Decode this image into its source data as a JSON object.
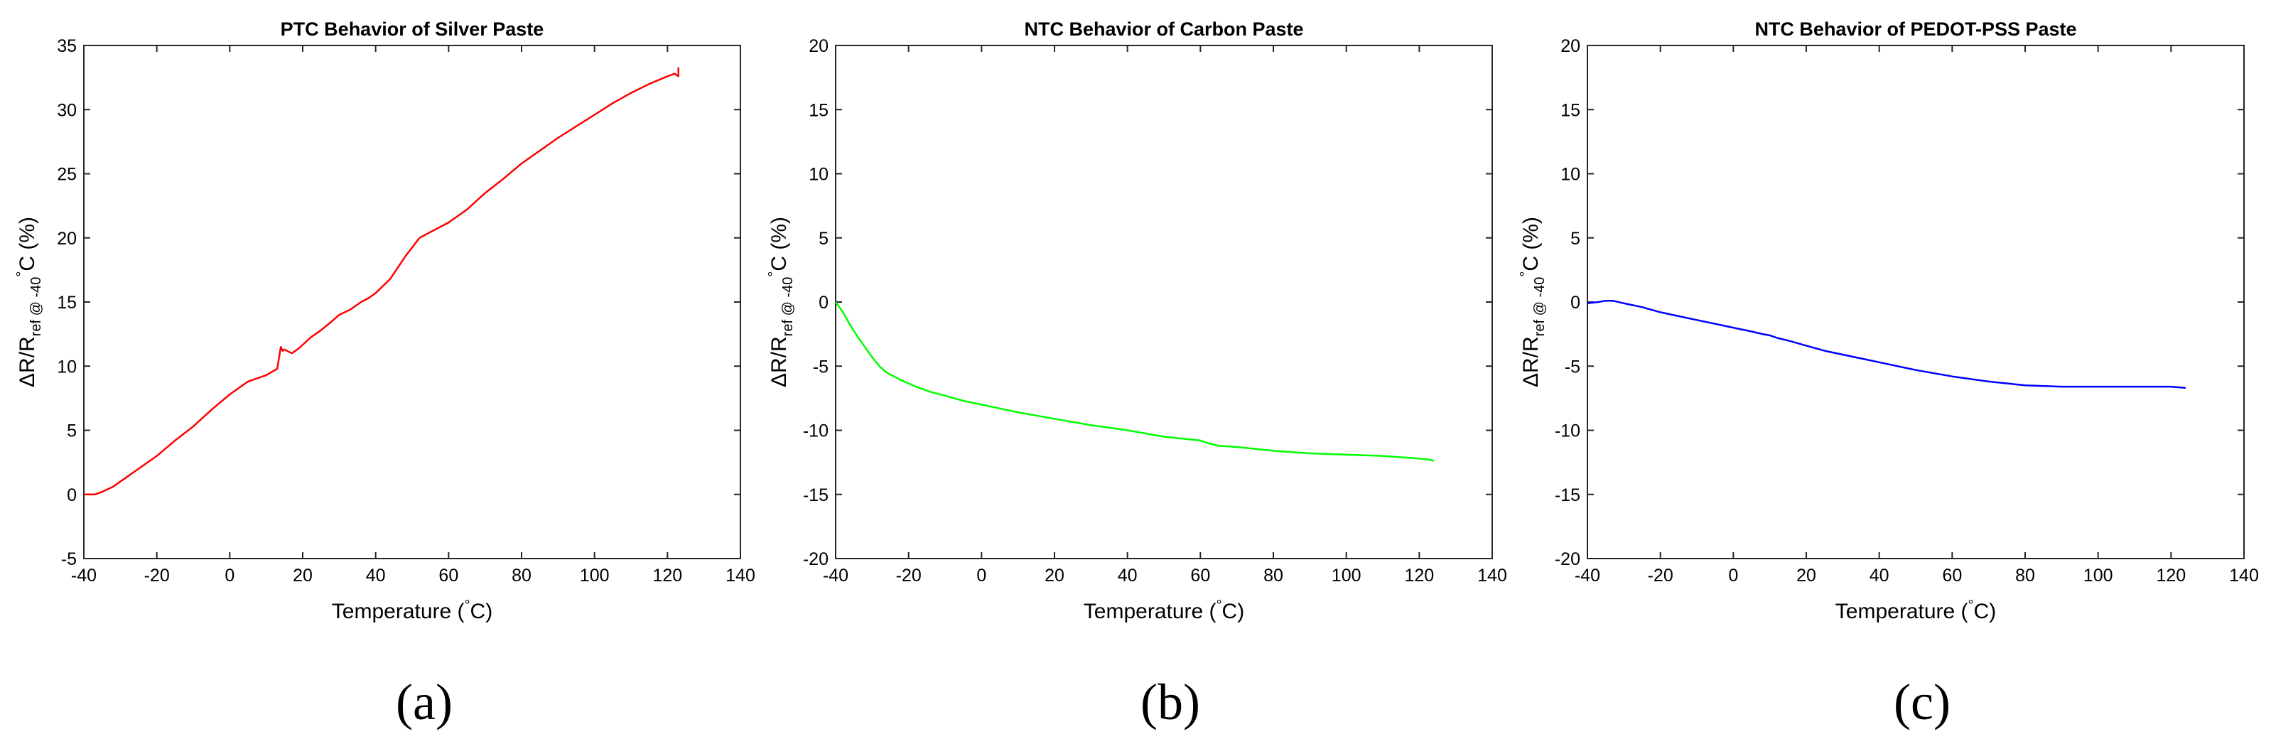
{
  "chart_data": [
    {
      "type": "line",
      "title": "PTC Behavior of Silver Paste",
      "panel_label": "(a)",
      "xlabel_main": "Temperature (",
      "xlabel_degree": "°",
      "xlabel_unit": "C)",
      "ylabel_main": "ΔR/R",
      "ylabel_sub": "ref @ -40",
      "ylabel_degree": "°",
      "ylabel_unit": "C (%)",
      "xlim": [
        -40,
        140
      ],
      "ylim": [
        -5,
        35
      ],
      "xticks": [
        -40,
        -20,
        0,
        20,
        40,
        60,
        80,
        100,
        120,
        140
      ],
      "yticks": [
        -5,
        0,
        5,
        10,
        15,
        20,
        25,
        30,
        35
      ],
      "series": [
        {
          "name": "Silver Paste",
          "color": "#ff0000",
          "x": [
            -40,
            -37,
            -35,
            -32,
            -30,
            -25,
            -20,
            -15,
            -10,
            -5,
            0,
            5,
            10,
            13,
            14,
            14.5,
            15,
            17,
            19,
            22,
            25,
            28,
            30,
            33,
            36,
            38,
            40,
            44,
            48,
            52,
            54,
            56,
            60,
            65,
            70,
            75,
            80,
            85,
            90,
            95,
            100,
            105,
            110,
            115,
            120,
            122,
            123,
            123
          ],
          "values": [
            0,
            0,
            0.2,
            0.6,
            1.0,
            2.0,
            3.0,
            4.2,
            5.3,
            6.6,
            7.8,
            8.8,
            9.3,
            9.8,
            11.5,
            11.2,
            11.3,
            11.0,
            11.4,
            12.2,
            12.8,
            13.5,
            14.0,
            14.4,
            15.0,
            15.3,
            15.7,
            16.8,
            18.5,
            20.0,
            20.3,
            20.6,
            21.2,
            22.2,
            23.5,
            24.6,
            25.8,
            26.8,
            27.8,
            28.7,
            29.6,
            30.5,
            31.3,
            32.0,
            32.6,
            32.8,
            32.6,
            33.3
          ]
        }
      ]
    },
    {
      "type": "line",
      "title": "NTC Behavior of Carbon Paste",
      "panel_label": "(b)",
      "xlabel_main": "Temperature (",
      "xlabel_degree": "°",
      "xlabel_unit": "C)",
      "ylabel_main": "ΔR/R",
      "ylabel_sub": "ref @ -40",
      "ylabel_degree": "°",
      "ylabel_unit": "C (%)",
      "xlim": [
        -40,
        140
      ],
      "ylim": [
        -20,
        20
      ],
      "xticks": [
        -40,
        -20,
        0,
        20,
        40,
        60,
        80,
        100,
        120,
        140
      ],
      "yticks": [
        -20,
        -15,
        -10,
        -5,
        0,
        5,
        10,
        15,
        20
      ],
      "series": [
        {
          "name": "Carbon Paste",
          "color": "#00ff00",
          "x": [
            -40,
            -38,
            -36,
            -34,
            -32,
            -30,
            -28,
            -26,
            -22,
            -18,
            -14,
            -10,
            -5,
            0,
            5,
            10,
            20,
            30,
            40,
            50,
            60,
            62,
            65,
            70,
            80,
            90,
            100,
            110,
            120,
            123,
            124
          ],
          "values": [
            0,
            -0.8,
            -1.8,
            -2.7,
            -3.5,
            -4.3,
            -5.0,
            -5.5,
            -6.1,
            -6.6,
            -7.0,
            -7.3,
            -7.7,
            -8.0,
            -8.3,
            -8.6,
            -9.1,
            -9.6,
            -10.0,
            -10.5,
            -10.8,
            -11.0,
            -11.2,
            -11.3,
            -11.6,
            -11.8,
            -11.9,
            -12.0,
            -12.2,
            -12.3,
            -12.4
          ]
        }
      ]
    },
    {
      "type": "line",
      "title": "NTC Behavior of PEDOT-PSS Paste",
      "panel_label": "(c)",
      "xlabel_main": "Temperature (",
      "xlabel_degree": "°",
      "xlabel_unit": "C)",
      "ylabel_main": "ΔR/R",
      "ylabel_sub": "ref @ -40",
      "ylabel_degree": "°",
      "ylabel_unit": "C (%)",
      "xlim": [
        -40,
        140
      ],
      "ylim": [
        -20,
        20
      ],
      "xticks": [
        -40,
        -20,
        0,
        20,
        40,
        60,
        80,
        100,
        120,
        140
      ],
      "yticks": [
        -20,
        -15,
        -10,
        -5,
        0,
        5,
        10,
        15,
        20
      ],
      "series": [
        {
          "name": "PEDOT-PSS Paste",
          "color": "#0000ff",
          "x": [
            -40,
            -37,
            -35,
            -33,
            -30,
            -25,
            -20,
            -15,
            -10,
            -5,
            0,
            5,
            8,
            10,
            12,
            15,
            20,
            25,
            30,
            35,
            40,
            50,
            60,
            70,
            80,
            90,
            100,
            110,
            120,
            124
          ],
          "values": [
            -0.1,
            0.0,
            0.1,
            0.1,
            -0.1,
            -0.4,
            -0.8,
            -1.1,
            -1.4,
            -1.7,
            -2.0,
            -2.3,
            -2.5,
            -2.6,
            -2.8,
            -3.0,
            -3.4,
            -3.8,
            -4.1,
            -4.4,
            -4.7,
            -5.3,
            -5.8,
            -6.2,
            -6.5,
            -6.6,
            -6.6,
            -6.6,
            -6.6,
            -6.7
          ]
        }
      ]
    }
  ]
}
